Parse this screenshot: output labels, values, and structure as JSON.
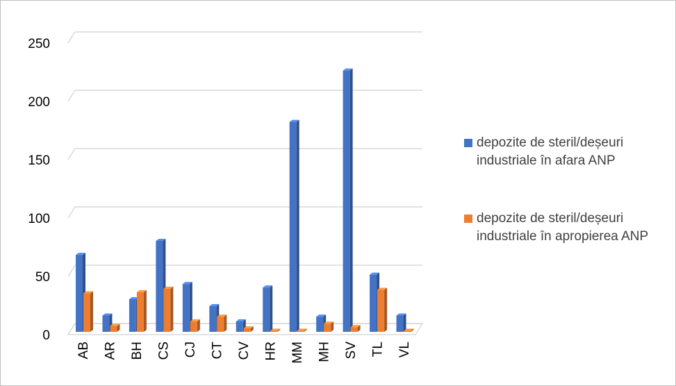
{
  "colors": {
    "series1": "#4472c4",
    "series2": "#ed7d31",
    "grid": "#d9d9d9",
    "axis_text": "#000000"
  },
  "chart_data": {
    "type": "bar",
    "categories": [
      "AB",
      "AR",
      "BH",
      "CS",
      "CJ",
      "CT",
      "CV",
      "HR",
      "MM",
      "MH",
      "SV",
      "TL",
      "VL"
    ],
    "series": [
      {
        "name": "depozite de steril/deșeuri industriale în afara ANP",
        "values": [
          66,
          14,
          28,
          78,
          41,
          22,
          9,
          38,
          180,
          13,
          224,
          49,
          14
        ]
      },
      {
        "name": "depozite de steril/deșeuri industriale în apropierea ANP",
        "values": [
          33,
          5,
          34,
          37,
          9,
          13,
          3,
          1,
          1,
          7,
          4,
          36,
          1
        ]
      }
    ],
    "ylim": [
      0,
      250
    ],
    "yticks": [
      "0",
      "50",
      "100",
      "150",
      "200",
      "250"
    ],
    "grid": true,
    "legend_position": "right",
    "title": "",
    "xlabel": "",
    "ylabel": ""
  }
}
